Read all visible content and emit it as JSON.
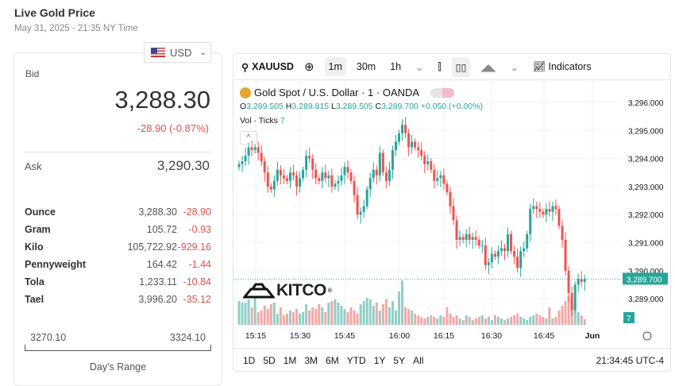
{
  "page": {
    "title": "Live Gold Price",
    "subtitle": "May 31, 2025 - 21:35 NY Time"
  },
  "currency": {
    "label": "USD",
    "icon": "us-flag-icon"
  },
  "quote": {
    "bid_label": "Bid",
    "bid": "3,288.30",
    "change": "-28.90 (-0.87%)",
    "ask_label": "Ask",
    "ask": "3,290.30"
  },
  "units": [
    {
      "name": "Ounce",
      "price": "3,288.30",
      "change": "-28.90"
    },
    {
      "name": "Gram",
      "price": "105.72",
      "change": "-0.93"
    },
    {
      "name": "Kilo",
      "price": "105,722.92",
      "change": "-929.16"
    },
    {
      "name": "Pennyweight",
      "price": "164.42",
      "change": "-1.44"
    },
    {
      "name": "Tola",
      "price": "1,233.11",
      "change": "-10.84"
    },
    {
      "name": "Tael",
      "price": "3,996.20",
      "change": "-35.12"
    }
  ],
  "range": {
    "low": "3270.10",
    "high": "3324.10",
    "label": "Day's Range"
  },
  "toolbar": {
    "symbol": "XAUUSD",
    "intervals": [
      "1m",
      "30m",
      "1h"
    ],
    "active_interval": "1m",
    "indicators": "Indicators"
  },
  "legend": {
    "title": "Gold Spot / U.S. Dollar · 1 · OANDA",
    "o": "3,289.505",
    "h": "3,289.815",
    "l": "3,289.505",
    "c": "3,289.700",
    "chg": "+0.050 (+0.00%)",
    "vol_label": "Vol · Ticks",
    "vol_value": "7"
  },
  "logo": "KITCO",
  "colors": {
    "up": "#26a69a",
    "down": "#ef5350",
    "up_vol": "#8fcfc7",
    "down_vol": "#f3a8a6"
  },
  "chart_data": {
    "type": "candlestick",
    "price_ticks": [
      "3,296.000",
      "3,295.000",
      "3,294.000",
      "3,293.000",
      "3,292.000",
      "3,291.000",
      "3,290.000",
      "3,289.000"
    ],
    "ylim": [
      3288.2,
      3296.5
    ],
    "time_ticks": [
      "15:15",
      "15:30",
      "15:45",
      "16:00",
      "16:15",
      "16:30",
      "16:45",
      "Jun"
    ],
    "start_time": "15:09",
    "last_price": "3,289.700",
    "last_volume": "7",
    "closes": [
      3293.8,
      3293.9,
      3294.1,
      3294.4,
      3294.3,
      3294.4,
      3294.2,
      3293.9,
      3293.5,
      3293.0,
      3292.9,
      3293.2,
      3293.6,
      3293.4,
      3293.3,
      3293.2,
      3293.5,
      3293.4,
      3293.0,
      3293.3,
      3293.6,
      3294.1,
      3294.0,
      3293.6,
      3293.3,
      3293.2,
      3293.5,
      3293.3,
      3293.4,
      3293.0,
      3293.1,
      3293.2,
      3293.4,
      3293.7,
      3293.5,
      3293.2,
      3292.7,
      3292.0,
      3292.1,
      3292.3,
      3292.9,
      3293.3,
      3293.6,
      3293.4,
      3294.2,
      3293.5,
      3293.2,
      3293.6,
      3294.3,
      3294.6,
      3294.9,
      3295.2,
      3294.9,
      3294.4,
      3294.6,
      3294.4,
      3294.3,
      3294.1,
      3293.8,
      3293.9,
      3293.6,
      3293.2,
      3293.3,
      3293.4,
      3293.1,
      3292.8,
      3292.3,
      3291.8,
      3291.1,
      3291.2,
      3291.1,
      3291.3,
      3291.1,
      3291.2,
      3291.1,
      3290.9,
      3290.9,
      3290.2,
      3290.3,
      3290.6,
      3290.5,
      3290.7,
      3290.8,
      3290.7,
      3291.3,
      3290.7,
      3290.5,
      3290.1,
      3290.7,
      3290.8,
      3291.3,
      3292.2,
      3292.3,
      3292.2,
      3292.1,
      3292.0,
      3292.2,
      3292.1,
      3292.3,
      3292.2,
      3291.6,
      3291.1,
      3290.0,
      3289.2,
      3288.6,
      3289.5,
      3289.7,
      3289.6,
      3289.7
    ],
    "volumes": [
      30,
      28,
      28,
      32,
      22,
      34,
      16,
      18,
      24,
      20,
      26,
      28,
      14,
      22,
      12,
      14,
      18,
      16,
      20,
      14,
      16,
      26,
      18,
      22,
      20,
      26,
      22,
      16,
      28,
      30,
      32,
      28,
      24,
      20,
      16,
      22,
      18,
      14,
      26,
      30,
      34,
      32,
      24,
      28,
      18,
      26,
      32,
      22,
      30,
      18,
      42,
      56,
      22,
      20,
      18,
      14,
      12,
      10,
      8,
      10,
      12,
      10,
      8,
      12,
      10,
      22,
      14,
      10,
      12,
      8,
      6,
      12,
      10,
      6,
      8,
      10,
      12,
      8,
      10,
      6,
      12,
      10,
      8,
      6,
      8,
      10,
      12,
      14,
      10,
      8,
      6,
      10,
      12,
      14,
      12,
      10,
      8,
      22,
      8,
      10,
      18,
      24,
      30,
      36,
      20,
      26,
      16,
      12,
      7
    ],
    "chart_note": ""
  },
  "bottom": {
    "ranges": [
      "1D",
      "5D",
      "1M",
      "3M",
      "6M",
      "YTD",
      "1Y",
      "5Y",
      "All"
    ],
    "clock": "21:34:45 UTC-4"
  }
}
